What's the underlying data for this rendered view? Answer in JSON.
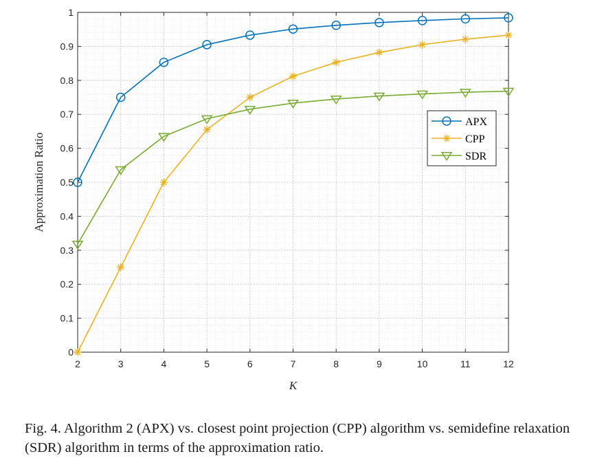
{
  "chart_data": {
    "type": "line",
    "x": [
      2,
      3,
      4,
      5,
      6,
      7,
      8,
      9,
      10,
      11,
      12
    ],
    "xlabel": "K",
    "ylabel": "Approximation Ratio",
    "xlim": [
      2,
      12
    ],
    "ylim": [
      0,
      1
    ],
    "xticks": [
      "2",
      "3",
      "4",
      "5",
      "6",
      "7",
      "8",
      "9",
      "10",
      "11",
      "12"
    ],
    "yticks": [
      "0",
      "0.1",
      "0.2",
      "0.3",
      "0.4",
      "0.5",
      "0.6",
      "0.7",
      "0.8",
      "0.9",
      "1"
    ],
    "grid": true,
    "minor_grid": true,
    "legend_position": "right",
    "series": [
      {
        "name": "APX",
        "marker": "circle",
        "color": "#0072BD",
        "values": [
          0.5,
          0.75,
          0.853,
          0.905,
          0.933,
          0.951,
          0.962,
          0.97,
          0.976,
          0.981,
          0.984
        ]
      },
      {
        "name": "CPP",
        "marker": "asterisk",
        "color": "#EDB120",
        "values": [
          0.0,
          0.25,
          0.5,
          0.655,
          0.75,
          0.812,
          0.853,
          0.882,
          0.905,
          0.921,
          0.933
        ]
      },
      {
        "name": "SDR",
        "marker": "triangle-down",
        "color": "#77AC30",
        "values": [
          0.318,
          0.537,
          0.635,
          0.687,
          0.715,
          0.733,
          0.745,
          0.754,
          0.76,
          0.765,
          0.768
        ]
      }
    ]
  },
  "caption": {
    "text": "Fig. 4.  Algorithm 2 (APX) vs. closest point projection (CPP) algorithm vs. semidefine relaxation (SDR) algorithm in terms of the approximation ratio."
  }
}
